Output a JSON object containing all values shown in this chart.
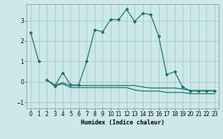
{
  "xlabel": "Humidex (Indice chaleur)",
  "bg_color": "#cce8e8",
  "grid_color": "#aacccc",
  "line_color": "#1a6e6e",
  "xlim": [
    -0.5,
    23.5
  ],
  "ylim": [
    -1.3,
    3.8
  ],
  "yticks": [
    -1,
    0,
    1,
    2,
    3
  ],
  "xticks": [
    0,
    1,
    2,
    3,
    4,
    5,
    6,
    7,
    8,
    9,
    10,
    11,
    12,
    13,
    14,
    15,
    16,
    17,
    18,
    19,
    20,
    21,
    22,
    23
  ],
  "series": [
    {
      "x": [
        0,
        1
      ],
      "y": [
        2.4,
        1.0
      ],
      "has_markers": true
    },
    {
      "x": [
        2,
        3,
        4,
        5,
        6,
        7,
        8,
        9,
        10,
        11,
        12,
        13,
        14,
        15,
        16,
        17,
        18,
        19,
        20,
        21,
        22,
        23
      ],
      "y": [
        0.1,
        -0.2,
        0.45,
        -0.15,
        -0.15,
        1.0,
        2.55,
        2.45,
        3.05,
        3.05,
        3.55,
        2.95,
        3.35,
        3.3,
        2.25,
        0.35,
        0.5,
        -0.25,
        -0.45,
        -0.45,
        -0.45,
        -0.45
      ],
      "has_markers": true
    },
    {
      "x": [
        2,
        3,
        4,
        5,
        6,
        7,
        8,
        9,
        10,
        11,
        12,
        13,
        14,
        15,
        16,
        17,
        18,
        19,
        20,
        21,
        22,
        23
      ],
      "y": [
        0.1,
        -0.15,
        -0.05,
        -0.18,
        -0.18,
        -0.18,
        -0.18,
        -0.18,
        -0.18,
        -0.18,
        -0.18,
        -0.18,
        -0.25,
        -0.3,
        -0.3,
        -0.3,
        -0.3,
        -0.35,
        -0.42,
        -0.42,
        -0.42,
        -0.42
      ],
      "has_markers": false
    },
    {
      "x": [
        2,
        3,
        4,
        5,
        6,
        7,
        8,
        9,
        10,
        11,
        12,
        13,
        14,
        15,
        16,
        17,
        18,
        19,
        20,
        21,
        22,
        23
      ],
      "y": [
        0.1,
        -0.2,
        -0.1,
        -0.28,
        -0.28,
        -0.28,
        -0.28,
        -0.28,
        -0.28,
        -0.28,
        -0.28,
        -0.4,
        -0.45,
        -0.45,
        -0.45,
        -0.52,
        -0.52,
        -0.52,
        -0.58,
        -0.58,
        -0.58,
        -0.58
      ],
      "has_markers": false
    }
  ]
}
